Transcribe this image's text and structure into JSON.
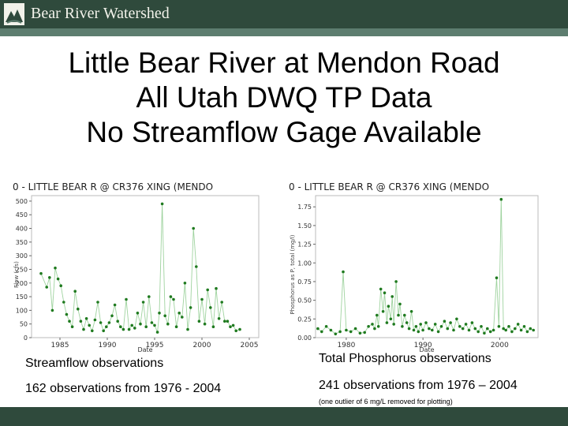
{
  "header": {
    "brand": "Bear River Watershed"
  },
  "title": {
    "line1": "Little Bear River at Mendon Road",
    "line2": "All Utah DWQ TP Data",
    "line3": "No Streamflow Gage Available"
  },
  "captions": {
    "left_title": "Streamflow observations",
    "left_count": "162 observations from 1976 - 2004",
    "right_title": "Total Phosphorus observations",
    "right_count": "241 observations from 1976 – 2004",
    "note": "(one outlier of 6 mg/L removed for plotting)"
  },
  "chart_data": [
    {
      "type": "line",
      "title": "0 - LITTLE BEAR R @ CR376 XING (MENDO",
      "xlabel": "Date",
      "ylabel": "Flow (cfs)",
      "xlim": [
        1982,
        2006
      ],
      "ylim": [
        0,
        520
      ],
      "xticks": [
        1985,
        1990,
        1995,
        2000,
        2005
      ],
      "yticks": [
        0,
        50,
        100,
        150,
        200,
        250,
        300,
        350,
        400,
        450,
        500
      ],
      "grid": false,
      "line_color": "#9fd39f",
      "marker_color": "#1f7a1f",
      "points": [
        [
          1983.0,
          235
        ],
        [
          1983.6,
          185
        ],
        [
          1983.9,
          220
        ],
        [
          1984.2,
          100
        ],
        [
          1984.5,
          255
        ],
        [
          1984.8,
          215
        ],
        [
          1985.1,
          190
        ],
        [
          1985.4,
          130
        ],
        [
          1985.7,
          85
        ],
        [
          1986.0,
          60
        ],
        [
          1986.3,
          40
        ],
        [
          1986.6,
          170
        ],
        [
          1986.9,
          105
        ],
        [
          1987.2,
          60
        ],
        [
          1987.5,
          30
        ],
        [
          1987.8,
          70
        ],
        [
          1988.1,
          45
        ],
        [
          1988.4,
          25
        ],
        [
          1988.7,
          65
        ],
        [
          1989.0,
          130
        ],
        [
          1989.3,
          55
        ],
        [
          1989.6,
          25
        ],
        [
          1989.9,
          40
        ],
        [
          1990.2,
          55
        ],
        [
          1990.5,
          80
        ],
        [
          1990.8,
          120
        ],
        [
          1991.1,
          60
        ],
        [
          1991.4,
          40
        ],
        [
          1991.7,
          30
        ],
        [
          1992.0,
          140
        ],
        [
          1992.3,
          30
        ],
        [
          1992.6,
          45
        ],
        [
          1992.9,
          35
        ],
        [
          1993.2,
          90
        ],
        [
          1993.5,
          50
        ],
        [
          1993.8,
          130
        ],
        [
          1994.1,
          40
        ],
        [
          1994.4,
          150
        ],
        [
          1994.7,
          55
        ],
        [
          1995.0,
          45
        ],
        [
          1995.3,
          20
        ],
        [
          1995.5,
          90
        ],
        [
          1995.8,
          490
        ],
        [
          1996.1,
          80
        ],
        [
          1996.4,
          50
        ],
        [
          1996.7,
          150
        ],
        [
          1997.0,
          140
        ],
        [
          1997.3,
          40
        ],
        [
          1997.6,
          90
        ],
        [
          1997.9,
          75
        ],
        [
          1998.2,
          200
        ],
        [
          1998.5,
          30
        ],
        [
          1998.8,
          110
        ],
        [
          1999.1,
          400
        ],
        [
          1999.4,
          260
        ],
        [
          1999.7,
          60
        ],
        [
          2000.0,
          140
        ],
        [
          2000.3,
          50
        ],
        [
          2000.6,
          175
        ],
        [
          2000.9,
          110
        ],
        [
          2001.2,
          40
        ],
        [
          2001.5,
          180
        ],
        [
          2001.8,
          70
        ],
        [
          2002.1,
          130
        ],
        [
          2002.4,
          60
        ],
        [
          2002.7,
          60
        ],
        [
          2003.0,
          40
        ],
        [
          2003.3,
          45
        ],
        [
          2003.6,
          25
        ],
        [
          2004.0,
          30
        ]
      ]
    },
    {
      "type": "line",
      "title": "0 - LITTLE BEAR R @ CR376 XING (MENDO",
      "xlabel": "Date",
      "ylabel": "Phosphorus as P, total (mg/l)",
      "xlim": [
        1976,
        2005
      ],
      "ylim": [
        0,
        1.9
      ],
      "xticks": [
        1980,
        1990,
        2000
      ],
      "yticks": [
        0.0,
        0.25,
        0.5,
        0.75,
        1.0,
        1.25,
        1.5,
        1.75
      ],
      "grid": false,
      "line_color": "#9fd39f",
      "marker_color": "#1f7a1f",
      "points": [
        [
          1976.3,
          0.12
        ],
        [
          1976.8,
          0.08
        ],
        [
          1977.4,
          0.15
        ],
        [
          1978.0,
          0.1
        ],
        [
          1978.6,
          0.05
        ],
        [
          1979.2,
          0.08
        ],
        [
          1979.6,
          0.88
        ],
        [
          1980.0,
          0.1
        ],
        [
          1980.6,
          0.08
        ],
        [
          1981.2,
          0.12
        ],
        [
          1981.8,
          0.06
        ],
        [
          1982.4,
          0.07
        ],
        [
          1982.9,
          0.15
        ],
        [
          1983.4,
          0.18
        ],
        [
          1983.7,
          0.12
        ],
        [
          1984.0,
          0.3
        ],
        [
          1984.2,
          0.15
        ],
        [
          1984.5,
          0.65
        ],
        [
          1984.8,
          0.35
        ],
        [
          1985.0,
          0.6
        ],
        [
          1985.3,
          0.2
        ],
        [
          1985.5,
          0.42
        ],
        [
          1985.8,
          0.25
        ],
        [
          1986.0,
          0.55
        ],
        [
          1986.2,
          0.18
        ],
        [
          1986.5,
          0.75
        ],
        [
          1986.8,
          0.3
        ],
        [
          1987.0,
          0.45
        ],
        [
          1987.3,
          0.15
        ],
        [
          1987.6,
          0.3
        ],
        [
          1987.9,
          0.2
        ],
        [
          1988.2,
          0.12
        ],
        [
          1988.5,
          0.35
        ],
        [
          1988.8,
          0.1
        ],
        [
          1989.1,
          0.15
        ],
        [
          1989.4,
          0.08
        ],
        [
          1989.7,
          0.18
        ],
        [
          1990.0,
          0.1
        ],
        [
          1990.4,
          0.2
        ],
        [
          1990.8,
          0.12
        ],
        [
          1991.2,
          0.1
        ],
        [
          1991.6,
          0.18
        ],
        [
          1992.0,
          0.08
        ],
        [
          1992.4,
          0.15
        ],
        [
          1992.8,
          0.22
        ],
        [
          1993.2,
          0.12
        ],
        [
          1993.6,
          0.2
        ],
        [
          1994.0,
          0.1
        ],
        [
          1994.4,
          0.25
        ],
        [
          1994.8,
          0.15
        ],
        [
          1995.2,
          0.12
        ],
        [
          1995.6,
          0.18
        ],
        [
          1996.0,
          0.1
        ],
        [
          1996.4,
          0.2
        ],
        [
          1996.8,
          0.12
        ],
        [
          1997.2,
          0.08
        ],
        [
          1997.6,
          0.15
        ],
        [
          1998.0,
          0.06
        ],
        [
          1998.4,
          0.12
        ],
        [
          1998.8,
          0.08
        ],
        [
          1999.2,
          0.1
        ],
        [
          1999.6,
          0.8
        ],
        [
          1999.9,
          0.15
        ],
        [
          2000.2,
          1.85
        ],
        [
          2000.5,
          0.12
        ],
        [
          2000.8,
          0.1
        ],
        [
          2001.2,
          0.15
        ],
        [
          2001.6,
          0.08
        ],
        [
          2002.0,
          0.12
        ],
        [
          2002.4,
          0.18
        ],
        [
          2002.8,
          0.1
        ],
        [
          2003.2,
          0.15
        ],
        [
          2003.6,
          0.08
        ],
        [
          2004.0,
          0.12
        ],
        [
          2004.4,
          0.1
        ]
      ]
    }
  ]
}
